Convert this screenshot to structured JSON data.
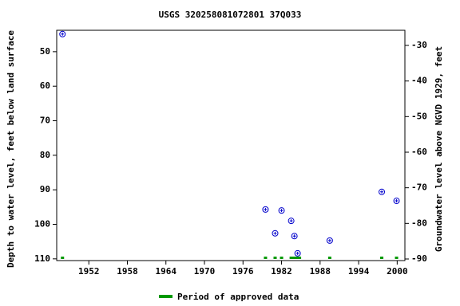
{
  "chart_data": {
    "type": "scatter",
    "title": "USGS 320258081072801 37Q033",
    "y_label": "Depth to water level, feet below land surface",
    "y2_label": "Groundwater level above NGVD 1929, feet",
    "x": [
      1947.9,
      1979.5,
      1981.0,
      1982.0,
      1983.5,
      1984.0,
      1984.5,
      1989.5,
      1997.6,
      1999.9
    ],
    "series": [
      {
        "color": "#0000cc",
        "values": [
          44.9,
          95.7,
          102.6,
          96.0,
          99.0,
          103.4,
          108.4,
          104.7,
          90.6,
          93.2
        ]
      }
    ],
    "approved": {
      "name": "Period of approved data",
      "color": "#009900",
      "periods": [
        [
          1947.9,
          1947.9
        ],
        [
          1979.5,
          1979.5
        ],
        [
          1981.0,
          1981.0
        ],
        [
          1982.0,
          1982.0
        ],
        [
          1983.5,
          1984.8
        ],
        [
          1989.5,
          1989.5
        ],
        [
          1997.6,
          1997.6
        ],
        [
          1999.9,
          1999.9
        ]
      ]
    },
    "xlim": [
      1947.0,
      2001.2
    ],
    "xticks": [
      1952,
      1958,
      1964,
      1970,
      1976,
      1982,
      1988,
      1994,
      2000
    ],
    "ylim": [
      43.8,
      110.5
    ],
    "yticks": [
      50,
      60,
      70,
      80,
      90,
      100,
      110
    ],
    "y2lim": [
      -25.75,
      -90.45
    ],
    "y2ticks": [
      -30,
      -40,
      -50,
      -60,
      -70,
      -80,
      -90
    ]
  }
}
